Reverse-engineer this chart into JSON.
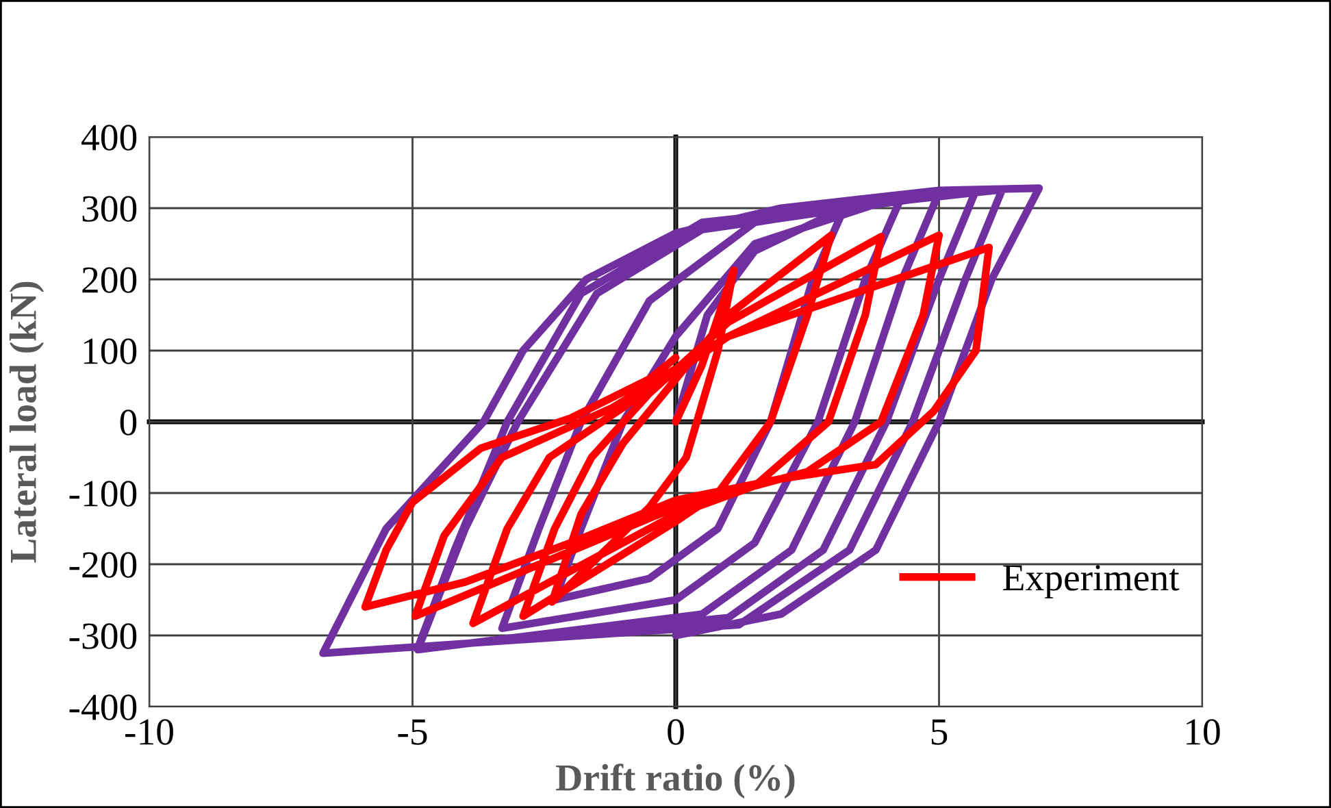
{
  "chart_data": {
    "type": "line",
    "xlabel": "Drift ratio (%)",
    "ylabel": "Lateral load (kN)",
    "xlim": [
      -10,
      10
    ],
    "xticks": [
      -10,
      -5,
      0,
      5,
      10
    ],
    "ylim": [
      -400,
      400
    ],
    "yticks": [
      -400,
      -300,
      -200,
      -100,
      0,
      100,
      200,
      300,
      400
    ],
    "grid": true,
    "legend": "bottom right",
    "marker": "none",
    "line_style": "solid",
    "series": [
      {
        "color": "#7030a0",
        "x": [
          0,
          0.6,
          1.5,
          3.2,
          2.6,
          1.8,
          0.8,
          -0.5,
          -2.3,
          -1.8,
          -1.0,
          0,
          1.5,
          4.3,
          3.6,
          2.7,
          1.5,
          0,
          -3.3,
          -2.6,
          -1.8,
          -0.5,
          1.5,
          5.0,
          4.3,
          3.4,
          2.2,
          0.5,
          -4.9,
          -4.0,
          -3.0,
          -1.5,
          0.5,
          5.7,
          5.0,
          4.0,
          2.8,
          1,
          -4.9,
          -4.2,
          -3.2,
          -1.8,
          0.5,
          6.2,
          5.5,
          4.5,
          3.3,
          1.2,
          -6.7,
          -5.5,
          -3.65,
          -2.9,
          -1.7,
          0,
          2,
          5,
          6.9,
          6.0,
          5.0,
          3.8,
          2,
          0
        ],
        "values": [
          0,
          150,
          240,
          300,
          200,
          0,
          -150,
          -220,
          -250,
          -150,
          0,
          120,
          250,
          318,
          200,
          0,
          -170,
          -250,
          -290,
          -150,
          0,
          170,
          280,
          322,
          200,
          0,
          -180,
          -270,
          -320,
          -150,
          0,
          180,
          270,
          325,
          200,
          0,
          -180,
          -275,
          -318,
          -180,
          0,
          180,
          280,
          326,
          200,
          0,
          -180,
          -285,
          -325,
          -150,
          0,
          100,
          200,
          265,
          300,
          325,
          328,
          200,
          0,
          -180,
          -270,
          -300
        ]
      },
      {
        "name": "Experiment",
        "color": "#ff0000",
        "x": [
          0,
          0.5,
          1.1,
          0.8,
          0.2,
          -0.5,
          -2.35,
          -1.8,
          -1,
          0,
          1,
          2.95,
          2.5,
          1.8,
          0.8,
          0,
          -2.9,
          -2.3,
          -1.6,
          -0.5,
          1,
          3.9,
          3.6,
          2.9,
          1.5,
          0,
          -3.85,
          -3.2,
          -2.4,
          -1,
          1,
          5.0,
          4.7,
          3.9,
          2.5,
          0,
          -4.95,
          -4.4,
          -3.3,
          -1.2,
          1,
          5.95,
          5.7,
          4.9,
          3.8,
          2,
          0,
          -2,
          -4,
          -5.9,
          -5.5,
          -5,
          -3.7,
          -2,
          -0.5,
          0
        ],
        "values": [
          0,
          80,
          213,
          100,
          -50,
          -120,
          -253,
          -130,
          -30,
          60,
          150,
          262,
          150,
          0,
          -100,
          -140,
          -273,
          -150,
          -50,
          40,
          140,
          260,
          150,
          0,
          -90,
          -130,
          -283,
          -150,
          -50,
          20,
          120,
          262,
          150,
          0,
          -70,
          -120,
          -273,
          -160,
          -50,
          20,
          120,
          245,
          100,
          15,
          -60,
          -80,
          -110,
          -170,
          -225,
          -260,
          -180,
          -113,
          -37,
          5,
          60,
          90
        ]
      }
    ]
  }
}
